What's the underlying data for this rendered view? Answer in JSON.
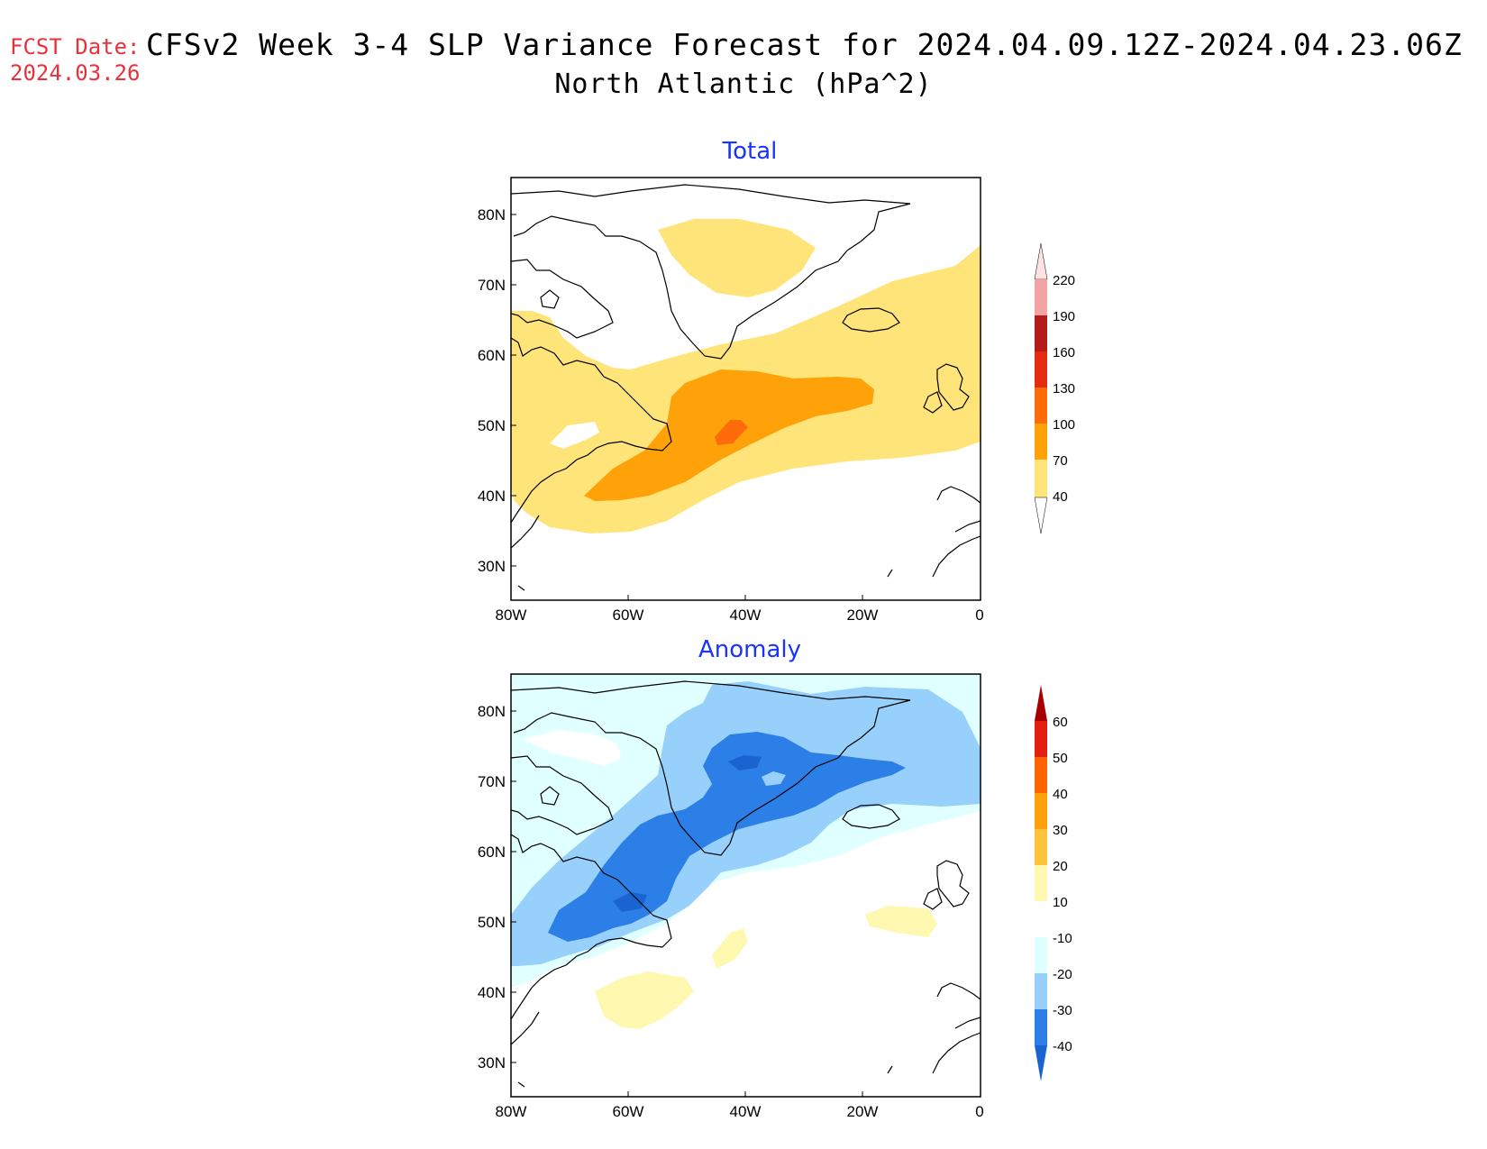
{
  "header": {
    "fcst_label": "FCST Date:",
    "fcst_date": "2024.03.26",
    "title": "CFSv2 Week 3-4 SLP Variance Forecast for 2024.04.09.12Z-2024.04.23.06Z",
    "subtitle": "North Atlantic (hPa^2)"
  },
  "panels": [
    {
      "title": "Total",
      "lat_labels": [
        "80N",
        "70N",
        "60N",
        "50N",
        "40N",
        "30N"
      ],
      "lon_labels": [
        "80W",
        "60W",
        "40W",
        "20W",
        "0"
      ],
      "colorbar": {
        "labels": [
          "220",
          "190",
          "160",
          "130",
          "100",
          "70",
          "40"
        ],
        "colors": [
          "#fde3e1",
          "#f3a3a3",
          "#b41c1c",
          "#e52b10",
          "#ff6a0a",
          "#ffa20a",
          "#ffe47a"
        ]
      }
    },
    {
      "title": "Anomaly",
      "lat_labels": [
        "80N",
        "70N",
        "60N",
        "50N",
        "40N",
        "30N"
      ],
      "lon_labels": [
        "80W",
        "60W",
        "40W",
        "20W",
        "0"
      ],
      "colorbar": {
        "labels": [
          "60",
          "50",
          "40",
          "30",
          "20",
          "10",
          "-10",
          "-20",
          "-30",
          "-40"
        ],
        "colors": [
          "#a80000",
          "#e32010",
          "#ff6400",
          "#ffa10a",
          "#ffc23a",
          "#fff8b0",
          "#ffffff",
          "#e0ffff",
          "#97d0fb",
          "#2b7fe6",
          "#1a64d1"
        ]
      }
    }
  ]
}
